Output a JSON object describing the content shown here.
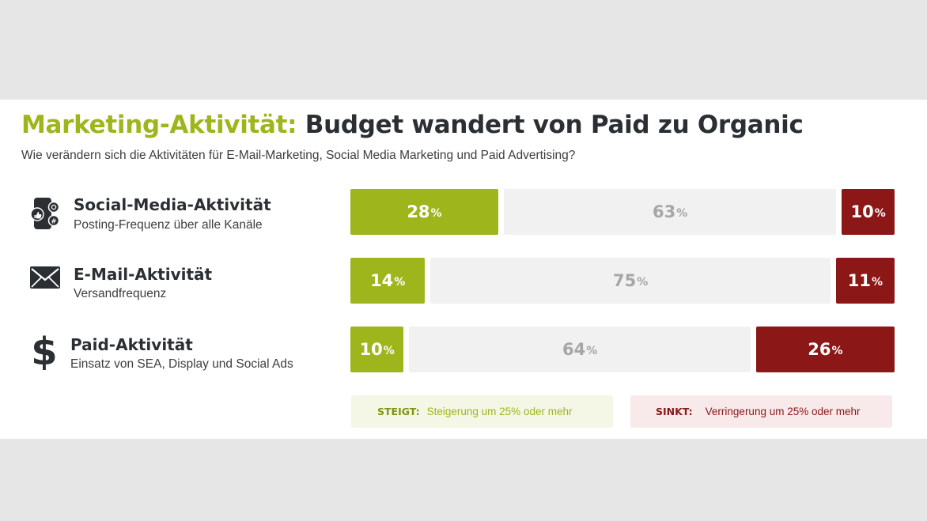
{
  "header": {
    "title_accent": "Marketing-Aktivität:",
    "title_rest": "Budget wandert von Paid zu Organic",
    "subtitle": "Wie verändern sich die Aktivitäten für E-Mail-Marketing, Social Media Marketing und Paid Advertising?"
  },
  "rows": [
    {
      "label": "Social-Media-Aktivität",
      "sublabel": "Posting-Frequenz über alle Kanäle",
      "icon": "social-media-phone-icon"
    },
    {
      "label": "E-Mail-Aktivität",
      "sublabel": "Versandfrequenz",
      "icon": "envelope-icon"
    },
    {
      "label": "Paid-Aktivität",
      "sublabel": "Einsatz von SEA, Display und Social Ads",
      "icon": "dollar-icon"
    }
  ],
  "legend": {
    "up_key": "STEIGT:",
    "up_text": "Steigerung um 25% oder mehr",
    "down_key": "SINKT:",
    "down_text": "Verringerung um 25% oder mehr"
  },
  "colors": {
    "accent": "#9fb51c",
    "up": "#9fb51c",
    "neutral": "#f1f1f1",
    "down": "#8b1716"
  },
  "chart_data": {
    "type": "bar",
    "stacked": true,
    "orientation": "horizontal",
    "unit": "%",
    "categories": [
      "Social-Media-Aktivität",
      "E-Mail-Aktivität",
      "Paid-Aktivität"
    ],
    "series": [
      {
        "name": "STEIGT",
        "values": [
          28,
          14,
          10
        ]
      },
      {
        "name": "",
        "values": [
          63,
          75,
          64
        ]
      },
      {
        "name": "SINKT",
        "values": [
          10,
          11,
          26
        ]
      }
    ]
  }
}
